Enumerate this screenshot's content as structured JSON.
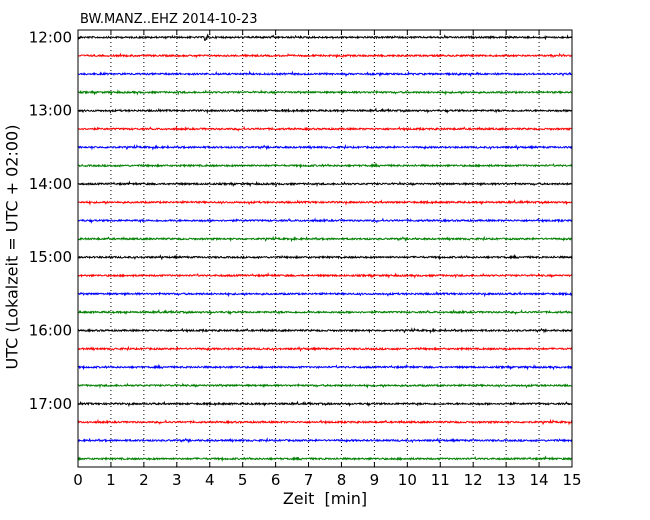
{
  "chart_data": {
    "type": "line",
    "title": "BW.MANZ..EHZ 2014-10-23",
    "xlabel": "Zeit  [min]",
    "ylabel": "UTC (Lokalzeit = UTC + 02:00)",
    "xlim": [
      0,
      15
    ],
    "x_ticks": [
      "0",
      "1",
      "2",
      "3",
      "4",
      "5",
      "6",
      "7",
      "8",
      "9",
      "10",
      "11",
      "12",
      "13",
      "14",
      "15"
    ],
    "y_ticks": [
      {
        "label": "12:00",
        "value": 0
      },
      {
        "label": "13:00",
        "value": 4
      },
      {
        "label": "14:00",
        "value": 8
      },
      {
        "label": "15:00",
        "value": 12
      },
      {
        "label": "16:00",
        "value": 16
      },
      {
        "label": "17:00",
        "value": 20
      }
    ],
    "ylim": [
      -0.4,
      23.45
    ],
    "grid": "vertical dotted",
    "trace_colors": [
      "#000000",
      "#ff0000",
      "#0000ff",
      "#008000"
    ],
    "trace_start_times": [
      "12:00",
      "12:15",
      "12:30",
      "12:45",
      "13:00",
      "13:15",
      "13:30",
      "13:45",
      "14:00",
      "14:15",
      "14:30",
      "14:45",
      "15:00",
      "15:15",
      "15:30",
      "15:45",
      "16:00",
      "16:15",
      "16:30",
      "16:45",
      "17:00",
      "17:15",
      "17:30",
      "17:45"
    ],
    "events": [
      {
        "trace": 0,
        "minute": 3.9
      }
    ]
  }
}
